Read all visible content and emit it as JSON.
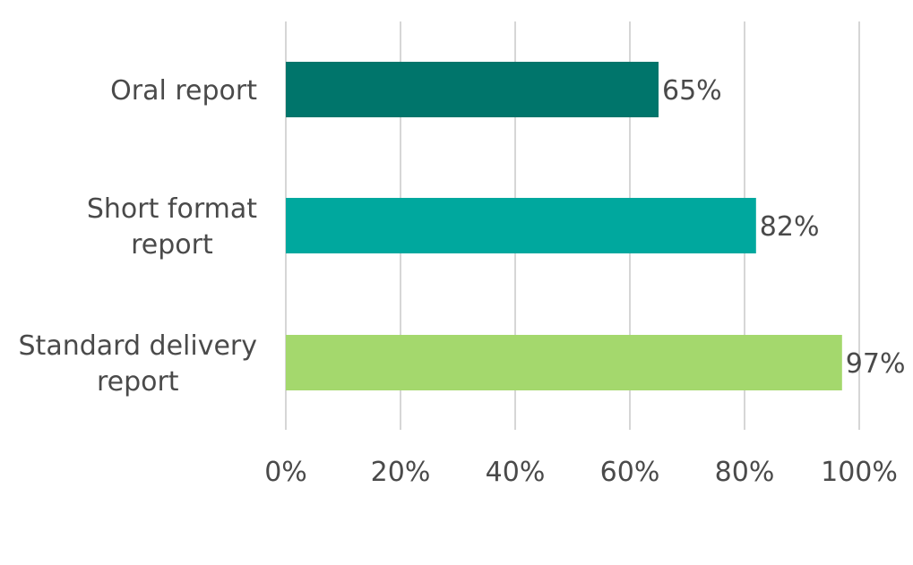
{
  "chart_data": {
    "type": "bar",
    "orientation": "horizontal",
    "categories": [
      [
        "Oral report"
      ],
      [
        "Short format",
        "report"
      ],
      [
        "Standard delivery",
        "report"
      ]
    ],
    "values": [
      65,
      82,
      97
    ],
    "data_labels": [
      "65%",
      "82%",
      "97%"
    ],
    "colors": [
      "#00756b",
      "#00a89e",
      "#a4d86d"
    ],
    "xlim": [
      0,
      100
    ],
    "xticks": [
      0,
      20,
      40,
      60,
      80,
      100
    ],
    "xtick_labels": [
      "0%",
      "20%",
      "40%",
      "60%",
      "80%",
      "100%"
    ],
    "grid": true,
    "legend": "none",
    "title": "",
    "xlabel": "",
    "ylabel": ""
  }
}
